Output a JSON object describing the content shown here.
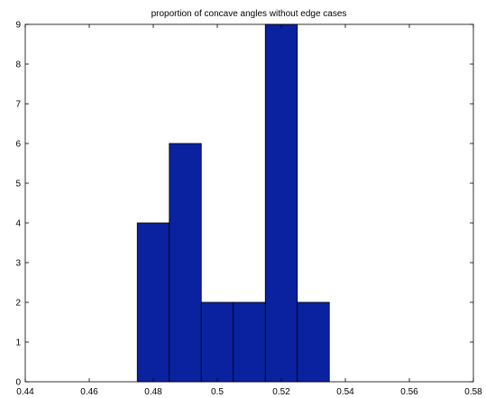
{
  "chart_data": {
    "type": "bar",
    "title": "proportion of concave angles without edge cases",
    "xlabel": "",
    "ylabel": "",
    "xlim": [
      0.44,
      0.58
    ],
    "ylim": [
      0,
      9
    ],
    "x_ticks": [
      0.44,
      0.46,
      0.48,
      0.5,
      0.52,
      0.54,
      0.56,
      0.58
    ],
    "x_tick_labels": [
      "0.44",
      "0.46",
      "0.48",
      "0.5",
      "0.52",
      "0.54",
      "0.56",
      "0.58"
    ],
    "y_ticks": [
      0,
      1,
      2,
      3,
      4,
      5,
      6,
      7,
      8,
      9
    ],
    "y_tick_labels": [
      "0",
      "1",
      "2",
      "3",
      "4",
      "5",
      "6",
      "7",
      "8",
      "9"
    ],
    "bin_width": 0.01,
    "bins": [
      {
        "center": 0.48,
        "count": 4
      },
      {
        "center": 0.49,
        "count": 6
      },
      {
        "center": 0.5,
        "count": 2
      },
      {
        "center": 0.51,
        "count": 2
      },
      {
        "center": 0.52,
        "count": 9
      },
      {
        "center": 0.53,
        "count": 2
      }
    ],
    "bar_color": "#0a22a0",
    "bar_edge_color": "#000000",
    "grid": false,
    "legend": "none"
  }
}
